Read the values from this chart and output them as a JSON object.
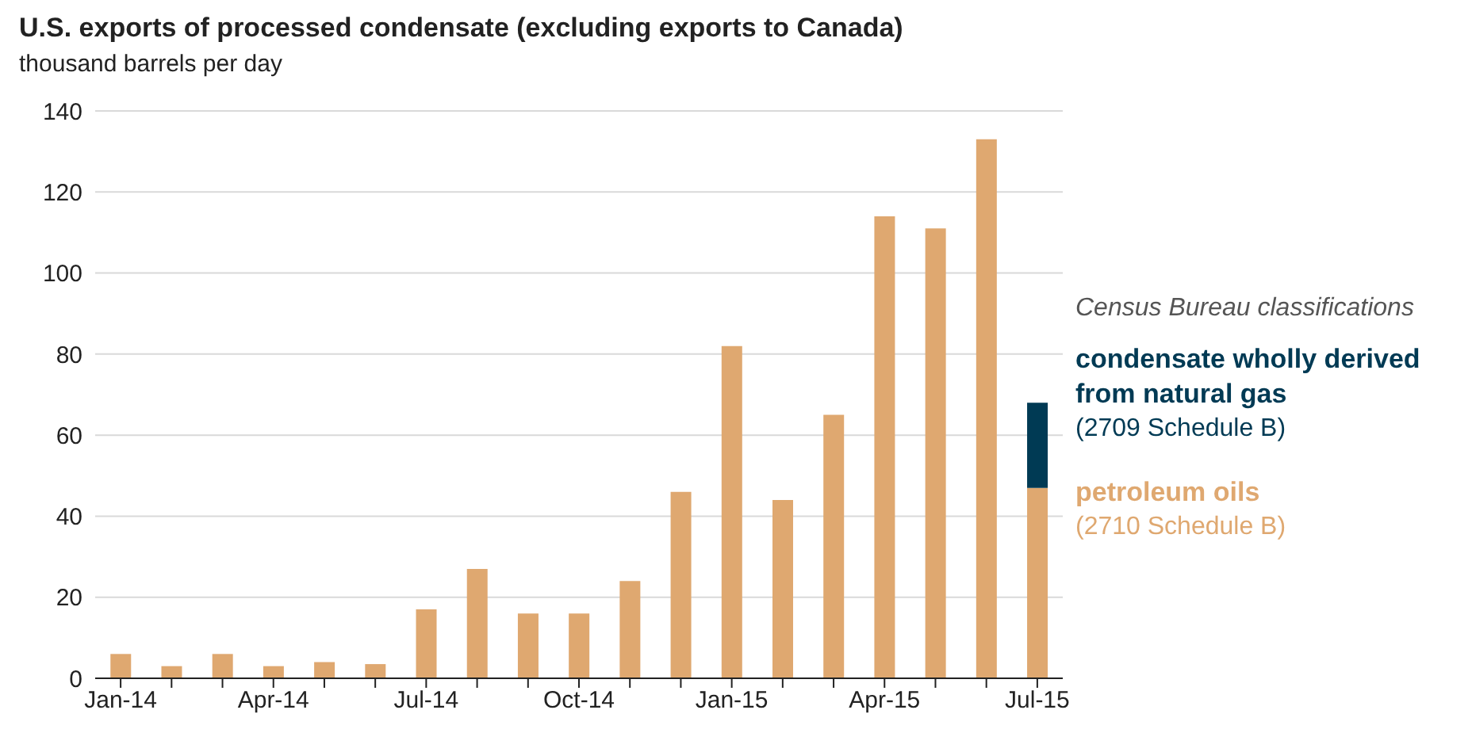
{
  "chart_data": {
    "type": "bar",
    "title": "U.S. exports of processed condensate (excluding exports to Canada)",
    "ylabel": "thousand barrels per day",
    "legend_title": "Census Bureau classifications",
    "categories": [
      "Jan-14",
      null,
      null,
      "Apr-14",
      null,
      null,
      "Jul-14",
      null,
      null,
      "Oct-14",
      null,
      null,
      "Jan-15",
      null,
      null,
      "Apr-15",
      null,
      null,
      "Jul-15"
    ],
    "stacked": true,
    "series": [
      {
        "name": "petroleum oils (2710 Schedule B)",
        "color": "#dfa870",
        "values": [
          6,
          3,
          6,
          3,
          4,
          3.5,
          17,
          27,
          16,
          16,
          24,
          46,
          82,
          44,
          65,
          114,
          111,
          133,
          47
        ]
      },
      {
        "name": "condensate wholly derived from natural gas (2709 Schedule B)",
        "color": "#003a54",
        "values": [
          null,
          null,
          null,
          null,
          null,
          null,
          null,
          null,
          null,
          null,
          null,
          null,
          null,
          null,
          null,
          null,
          null,
          null,
          21
        ]
      }
    ],
    "ylim": [
      0,
      140
    ],
    "yticks": [
      0,
      20,
      40,
      60,
      80,
      100,
      120,
      140
    ],
    "grid": "y",
    "legend": "right"
  }
}
